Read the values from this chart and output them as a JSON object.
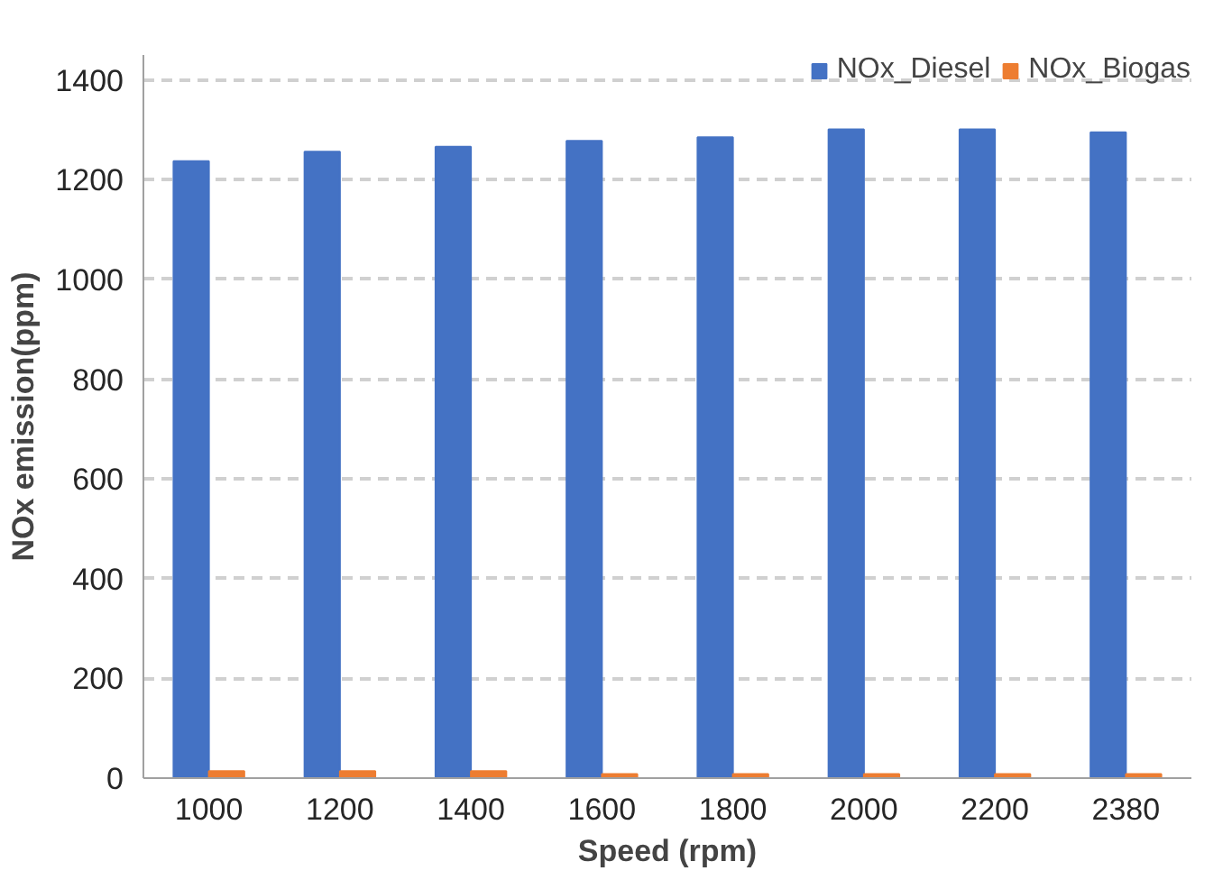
{
  "chart_data": {
    "type": "bar",
    "xlabel": "Speed (rpm)",
    "ylabel": "NOx emission(ppm)",
    "categories": [
      "1000",
      "1200",
      "1400",
      "1600",
      "1800",
      "2000",
      "2200",
      "2380"
    ],
    "series": [
      {
        "name": "NOx_Diesel",
        "color": "#4472c4",
        "values": [
          1237,
          1256,
          1266,
          1278,
          1285,
          1301,
          1301,
          1295
        ]
      },
      {
        "name": "NOx_Biogas",
        "color": "#ed7d31",
        "values": [
          14,
          14,
          14,
          8,
          8,
          8,
          8,
          8
        ]
      }
    ],
    "ylim": [
      0,
      1450
    ],
    "yticks": [
      0,
      200,
      400,
      600,
      800,
      1000,
      1200,
      1400
    ],
    "grid": "y",
    "legend": "top right"
  }
}
